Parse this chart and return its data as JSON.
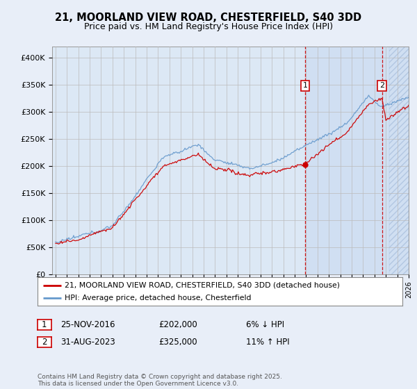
{
  "title_line1": "21, MOORLAND VIEW ROAD, CHESTERFIELD, S40 3DD",
  "title_line2": "Price paid vs. HM Land Registry's House Price Index (HPI)",
  "legend_label_red": "21, MOORLAND VIEW ROAD, CHESTERFIELD, S40 3DD (detached house)",
  "legend_label_blue": "HPI: Average price, detached house, Chesterfield",
  "annotation1": {
    "num": "1",
    "date": "25-NOV-2016",
    "price": "£202,000",
    "pct": "6% ↓ HPI"
  },
  "annotation2": {
    "num": "2",
    "date": "31-AUG-2023",
    "price": "£325,000",
    "pct": "11% ↑ HPI"
  },
  "footer": "Contains HM Land Registry data © Crown copyright and database right 2025.\nThis data is licensed under the Open Government Licence v3.0.",
  "ylim": [
    0,
    420000
  ],
  "yticks": [
    0,
    50000,
    100000,
    150000,
    200000,
    250000,
    300000,
    350000,
    400000
  ],
  "ytick_labels": [
    "£0",
    "£50K",
    "£100K",
    "£150K",
    "£200K",
    "£250K",
    "£300K",
    "£350K",
    "£400K"
  ],
  "background_color": "#e8eef8",
  "plot_bg_color": "#dce8f5",
  "red_color": "#cc0000",
  "blue_color": "#6699cc",
  "marker_x1": 2016.92,
  "marker_x2": 2023.67,
  "sale1_y": 202000,
  "sale2_y": 325000,
  "xmin": 1994.7,
  "xmax": 2026.0,
  "hatch_start": 2024.3
}
